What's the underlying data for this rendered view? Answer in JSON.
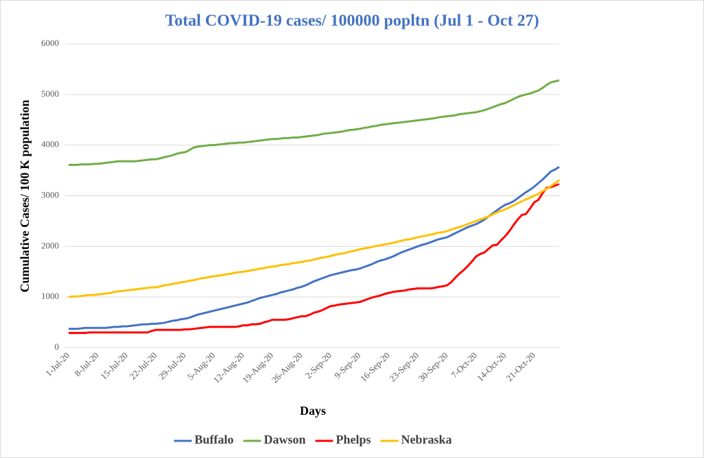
{
  "chart_data": {
    "type": "line",
    "title": "Total COVID-19 cases/ 100000 popltn (Jul 1 - Oct 27)",
    "x_label": "Days",
    "y_label": "Cumulative Cases/ 100 K population",
    "categories": [
      "1-Jul-20",
      null,
      null,
      null,
      null,
      null,
      null,
      "8-Jul-20",
      null,
      null,
      null,
      null,
      null,
      null,
      "15-Jul-20",
      null,
      null,
      null,
      null,
      null,
      null,
      "22-Jul-20",
      null,
      null,
      null,
      null,
      null,
      null,
      "29-Jul-20",
      null,
      null,
      null,
      null,
      null,
      null,
      "5-Aug-20",
      null,
      null,
      null,
      null,
      null,
      null,
      "12-Aug-20",
      null,
      null,
      null,
      null,
      null,
      null,
      "19-Aug-20",
      null,
      null,
      null,
      null,
      null,
      null,
      "26-Aug-20",
      null,
      null,
      null,
      null,
      null,
      null,
      "2-Sep-20",
      null,
      null,
      null,
      null,
      null,
      null,
      "9-Sep-20",
      null,
      null,
      null,
      null,
      null,
      null,
      "16-Sep-20",
      null,
      null,
      null,
      null,
      null,
      null,
      "23-Sep-20",
      null,
      null,
      null,
      null,
      null,
      null,
      "30-Sep-20",
      null,
      null,
      null,
      null,
      null,
      null,
      "7-Oct-20",
      null,
      null,
      null,
      null,
      null,
      null,
      "14-Oct-20",
      null,
      null,
      null,
      null,
      null,
      null,
      "21-Oct-20",
      null,
      null,
      null,
      null,
      null,
      null
    ],
    "series": [
      {
        "name": "Buffalo",
        "color": "#4472c4",
        "values": [
          370,
          370,
          370,
          380,
          390,
          390,
          390,
          390,
          390,
          390,
          400,
          410,
          410,
          420,
          420,
          430,
          440,
          450,
          460,
          460,
          470,
          470,
          480,
          490,
          510,
          530,
          540,
          560,
          570,
          590,
          620,
          650,
          670,
          690,
          710,
          730,
          750,
          770,
          790,
          810,
          830,
          850,
          870,
          890,
          920,
          950,
          980,
          1000,
          1020,
          1040,
          1060,
          1090,
          1110,
          1130,
          1150,
          1180,
          1200,
          1230,
          1270,
          1310,
          1340,
          1370,
          1400,
          1430,
          1450,
          1470,
          1490,
          1510,
          1530,
          1540,
          1560,
          1590,
          1620,
          1650,
          1690,
          1720,
          1740,
          1770,
          1800,
          1840,
          1880,
          1910,
          1940,
          1970,
          2000,
          2030,
          2050,
          2080,
          2110,
          2140,
          2160,
          2180,
          2220,
          2260,
          2300,
          2340,
          2380,
          2410,
          2440,
          2480,
          2530,
          2590,
          2650,
          2710,
          2770,
          2820,
          2850,
          2890,
          2950,
          3010,
          3070,
          3120,
          3180,
          3250,
          3320,
          3400,
          3480,
          3520,
          3570
        ]
      },
      {
        "name": "Dawson",
        "color": "#70ad47",
        "values": [
          3610,
          3610,
          3610,
          3620,
          3620,
          3620,
          3630,
          3630,
          3640,
          3650,
          3660,
          3670,
          3680,
          3680,
          3680,
          3680,
          3680,
          3690,
          3700,
          3710,
          3720,
          3720,
          3740,
          3760,
          3780,
          3800,
          3830,
          3850,
          3860,
          3900,
          3950,
          3970,
          3980,
          3990,
          4000,
          4000,
          4010,
          4020,
          4030,
          4040,
          4040,
          4050,
          4050,
          4060,
          4070,
          4080,
          4090,
          4100,
          4110,
          4120,
          4120,
          4130,
          4140,
          4140,
          4150,
          4150,
          4160,
          4170,
          4180,
          4190,
          4200,
          4220,
          4230,
          4240,
          4250,
          4260,
          4270,
          4290,
          4300,
          4310,
          4320,
          4340,
          4350,
          4370,
          4380,
          4400,
          4410,
          4420,
          4430,
          4440,
          4450,
          4460,
          4470,
          4480,
          4490,
          4500,
          4510,
          4520,
          4530,
          4550,
          4560,
          4570,
          4580,
          4590,
          4610,
          4620,
          4630,
          4640,
          4650,
          4670,
          4690,
          4720,
          4750,
          4780,
          4810,
          4830,
          4870,
          4910,
          4950,
          4980,
          5000,
          5020,
          5050,
          5080,
          5130,
          5190,
          5240,
          5260,
          5280
        ]
      },
      {
        "name": "Phelps",
        "color": "#ff0000",
        "values": [
          290,
          290,
          290,
          290,
          290,
          300,
          300,
          300,
          300,
          300,
          300,
          300,
          300,
          300,
          300,
          300,
          300,
          300,
          300,
          300,
          330,
          350,
          350,
          350,
          350,
          350,
          350,
          350,
          360,
          360,
          370,
          380,
          390,
          400,
          410,
          410,
          410,
          410,
          410,
          410,
          410,
          420,
          440,
          440,
          460,
          460,
          470,
          500,
          520,
          550,
          550,
          550,
          550,
          560,
          580,
          600,
          620,
          620,
          650,
          690,
          710,
          740,
          780,
          820,
          830,
          850,
          860,
          870,
          880,
          890,
          900,
          930,
          960,
          990,
          1010,
          1030,
          1060,
          1080,
          1100,
          1110,
          1120,
          1130,
          1150,
          1160,
          1170,
          1170,
          1170,
          1170,
          1180,
          1200,
          1210,
          1230,
          1290,
          1380,
          1460,
          1530,
          1610,
          1700,
          1800,
          1850,
          1880,
          1950,
          2020,
          2030,
          2120,
          2200,
          2300,
          2420,
          2530,
          2620,
          2640,
          2750,
          2870,
          2920,
          3050,
          3160,
          3170,
          3200,
          3230
        ]
      },
      {
        "name": "Nebraska",
        "color": "#ffc000",
        "values": [
          1000,
          1010,
          1010,
          1020,
          1030,
          1040,
          1040,
          1050,
          1060,
          1070,
          1080,
          1100,
          1110,
          1120,
          1130,
          1140,
          1150,
          1160,
          1170,
          1180,
          1190,
          1190,
          1210,
          1230,
          1240,
          1260,
          1270,
          1290,
          1300,
          1320,
          1330,
          1350,
          1370,
          1380,
          1400,
          1410,
          1420,
          1430,
          1450,
          1460,
          1480,
          1490,
          1500,
          1510,
          1530,
          1540,
          1560,
          1570,
          1590,
          1600,
          1610,
          1630,
          1640,
          1650,
          1670,
          1680,
          1690,
          1710,
          1720,
          1740,
          1760,
          1780,
          1790,
          1810,
          1830,
          1850,
          1860,
          1880,
          1900,
          1920,
          1940,
          1960,
          1970,
          1990,
          2010,
          2020,
          2040,
          2050,
          2070,
          2090,
          2110,
          2130,
          2140,
          2160,
          2180,
          2200,
          2210,
          2230,
          2250,
          2270,
          2280,
          2300,
          2330,
          2360,
          2380,
          2410,
          2440,
          2470,
          2500,
          2530,
          2560,
          2590,
          2630,
          2670,
          2700,
          2730,
          2770,
          2810,
          2850,
          2890,
          2930,
          2960,
          3000,
          3040,
          3090,
          3140,
          3190,
          3250,
          3310
        ]
      }
    ],
    "ylim": [
      0,
      6000
    ],
    "yticks": [
      0,
      1000,
      2000,
      3000,
      4000,
      5000,
      6000
    ],
    "grid": true,
    "legend": "bottom"
  }
}
